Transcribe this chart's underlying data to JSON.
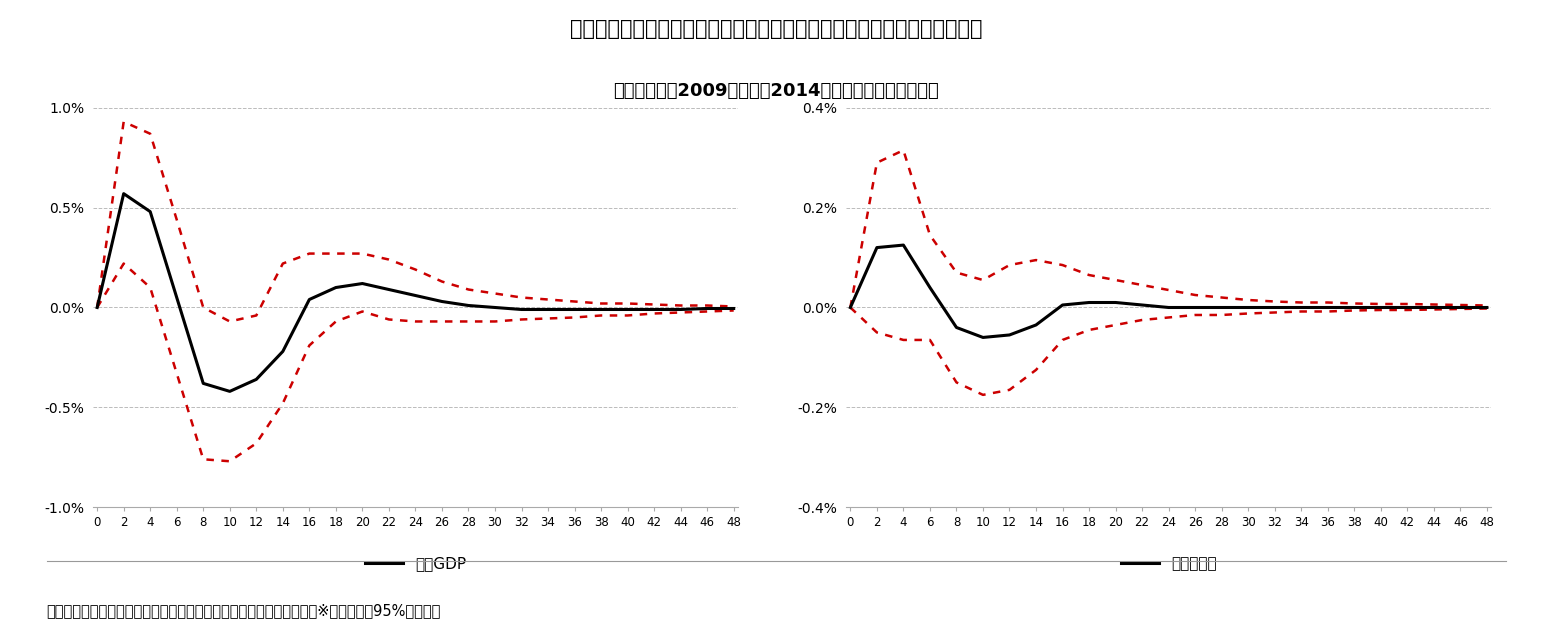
{
  "title1": "図表７：電子マネー決済額にショックを与えたときのインパルス応答関数",
  "title2": "（分析期間：2009年１月〜2014年３月の四半期データ）",
  "footer": "（資料：内閣府、総務省、経済産業省、日本銀行のデータから作成）※赤い点線は95%信頼区間",
  "xlabels": [
    0,
    2,
    4,
    6,
    8,
    10,
    12,
    14,
    16,
    18,
    20,
    22,
    24,
    26,
    28,
    30,
    32,
    34,
    36,
    38,
    40,
    42,
    44,
    46,
    48
  ],
  "legend1": "実質GDP",
  "legend2": "物価上昇率",
  "gdp_irf": [
    0.0,
    0.57,
    0.48,
    0.05,
    -0.38,
    -0.42,
    -0.36,
    -0.22,
    0.04,
    0.1,
    0.12,
    0.09,
    0.06,
    0.03,
    0.01,
    0.0,
    -0.01,
    -0.01,
    -0.01,
    -0.01,
    -0.01,
    -0.01,
    -0.01,
    -0.005,
    -0.005
  ],
  "gdp_upper": [
    0.0,
    0.93,
    0.87,
    0.44,
    0.0,
    -0.07,
    -0.04,
    0.22,
    0.27,
    0.27,
    0.27,
    0.24,
    0.19,
    0.13,
    0.09,
    0.07,
    0.05,
    0.04,
    0.03,
    0.02,
    0.02,
    0.015,
    0.01,
    0.01,
    0.005
  ],
  "gdp_lower": [
    0.0,
    0.22,
    0.1,
    -0.33,
    -0.76,
    -0.77,
    -0.68,
    -0.48,
    -0.19,
    -0.07,
    -0.02,
    -0.06,
    -0.07,
    -0.07,
    -0.07,
    -0.07,
    -0.06,
    -0.055,
    -0.05,
    -0.04,
    -0.04,
    -0.03,
    -0.025,
    -0.02,
    -0.015
  ],
  "cpi_irf": [
    0.0,
    0.12,
    0.125,
    0.04,
    -0.04,
    -0.06,
    -0.055,
    -0.035,
    0.005,
    0.01,
    0.01,
    0.005,
    0.0,
    0.0,
    0.0,
    0.0,
    0.0,
    0.0,
    0.0,
    0.0,
    0.0,
    0.0,
    0.0,
    0.0,
    0.0
  ],
  "cpi_upper": [
    0.0,
    0.29,
    0.315,
    0.145,
    0.07,
    0.055,
    0.085,
    0.095,
    0.085,
    0.065,
    0.055,
    0.045,
    0.035,
    0.025,
    0.02,
    0.015,
    0.012,
    0.01,
    0.01,
    0.008,
    0.007,
    0.007,
    0.006,
    0.005,
    0.004
  ],
  "cpi_lower": [
    0.0,
    -0.05,
    -0.065,
    -0.065,
    -0.15,
    -0.175,
    -0.165,
    -0.125,
    -0.065,
    -0.045,
    -0.035,
    -0.025,
    -0.02,
    -0.015,
    -0.015,
    -0.012,
    -0.01,
    -0.008,
    -0.008,
    -0.006,
    -0.005,
    -0.005,
    -0.004,
    -0.003,
    -0.002
  ],
  "gdp_ylim": [
    -1.0,
    1.0
  ],
  "cpi_ylim": [
    -0.4,
    0.4
  ],
  "gdp_yticks": [
    -1.0,
    -0.5,
    0.0,
    0.5,
    1.0
  ],
  "cpi_yticks": [
    -0.4,
    -0.2,
    0.0,
    0.2,
    0.4
  ],
  "line_color": "#000000",
  "band_color": "#cc0000",
  "bg_color": "#ffffff",
  "grid_color": "#bbbbbb"
}
